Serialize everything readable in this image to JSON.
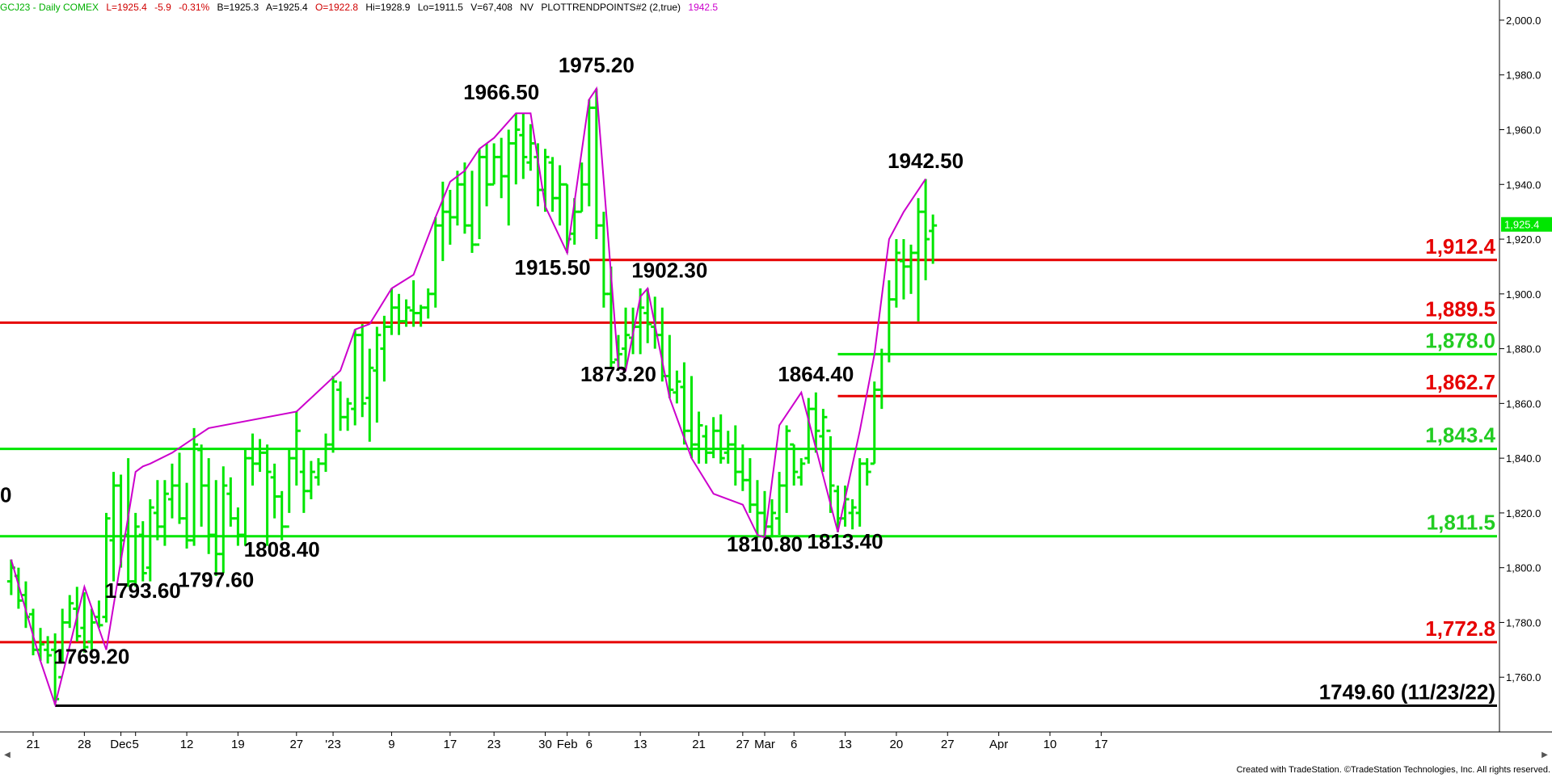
{
  "header": {
    "symbol": "GCJ23 - Daily  COMEX",
    "last": "L=1925.4",
    "change": "-5.9",
    "pct": "-0.31%",
    "bid": "B=1925.3",
    "ask": "A=1925.4",
    "open": "O=1922.8",
    "high": "Hi=1928.9",
    "low": "Lo=1911.5",
    "volume": "V=67,408",
    "nv": "NV",
    "indicator": "PLOTTRENDPOINTS#2 (2,true)",
    "indicator_value": "1942.5"
  },
  "colors": {
    "bar": "#00e600",
    "trend": "#cc00cc",
    "red_level": "#e60000",
    "green_level": "#00e600",
    "black_level": "#000000",
    "label_red": "#e60000",
    "label_green": "#22cc22",
    "header_green": "#00b000",
    "header_red": "#d00000"
  },
  "footer": {
    "text": "Created with TradeStation. ©TradeStation Technologies, Inc. All rights reserved."
  },
  "chart_data": {
    "type": "bar",
    "y_range": [
      1740,
      2005
    ],
    "y_ticks": [
      {
        "value": 2000,
        "label": "2,000.0"
      },
      {
        "value": 1980,
        "label": "1,980.0"
      },
      {
        "value": 1960,
        "label": "1,960.0"
      },
      {
        "value": 1940,
        "label": "1,940.0"
      },
      {
        "value": 1920,
        "label": "1,920.0"
      },
      {
        "value": 1900,
        "label": "1,900.0"
      },
      {
        "value": 1880,
        "label": "1,880.0"
      },
      {
        "value": 1860,
        "label": "1,860.0"
      },
      {
        "value": 1840,
        "label": "1,840.0"
      },
      {
        "value": 1820,
        "label": "1,820.0"
      },
      {
        "value": 1800,
        "label": "1,800.0"
      },
      {
        "value": 1780,
        "label": "1,780.0"
      },
      {
        "value": 1760,
        "label": "1,760.0"
      }
    ],
    "last_price_label": "1,925.4",
    "last_price": 1925.4,
    "x_ticks": [
      {
        "day": 0,
        "label": "21"
      },
      {
        "day": 7,
        "label": "28"
      },
      {
        "day": 12,
        "label": "Dec"
      },
      {
        "day": 14,
        "label": "5"
      },
      {
        "day": 21,
        "label": "12"
      },
      {
        "day": 28,
        "label": "19"
      },
      {
        "day": 36,
        "label": "27"
      },
      {
        "day": 41,
        "label": "'23"
      },
      {
        "day": 49,
        "label": "9"
      },
      {
        "day": 57,
        "label": "17"
      },
      {
        "day": 63,
        "label": "23"
      },
      {
        "day": 70,
        "label": "30"
      },
      {
        "day": 73,
        "label": "Feb"
      },
      {
        "day": 76,
        "label": "6"
      },
      {
        "day": 83,
        "label": "13"
      },
      {
        "day": 91,
        "label": "21"
      },
      {
        "day": 97,
        "label": "27"
      },
      {
        "day": 100,
        "label": "Mar"
      },
      {
        "day": 104,
        "label": "6"
      },
      {
        "day": 111,
        "label": "13"
      },
      {
        "day": 118,
        "label": "20"
      },
      {
        "day": 125,
        "label": "27"
      },
      {
        "day": 132,
        "label": "Apr"
      },
      {
        "day": 139,
        "label": "10"
      },
      {
        "day": 146,
        "label": "17"
      }
    ],
    "bars": [
      [
        -3,
        1803,
        1790,
        1795,
        1800
      ],
      [
        -2,
        1800,
        1785,
        1797,
        1788
      ],
      [
        -1,
        1795,
        1778,
        1790,
        1782
      ],
      [
        0,
        1785,
        1768,
        1783,
        1770
      ],
      [
        1,
        1778,
        1766,
        1770,
        1772
      ],
      [
        2,
        1775,
        1765,
        1770,
        1768
      ],
      [
        3,
        1776,
        1750,
        1770,
        1752
      ],
      [
        4,
        1785,
        1765,
        1760,
        1780
      ],
      [
        5,
        1790,
        1778,
        1780,
        1787
      ],
      [
        6,
        1793,
        1773,
        1785,
        1775
      ],
      [
        7,
        1791,
        1769,
        1778,
        1771
      ],
      [
        8,
        1785,
        1770,
        1773,
        1780
      ],
      [
        9,
        1788,
        1778,
        1782,
        1779
      ],
      [
        10,
        1820,
        1780,
        1782,
        1818
      ],
      [
        11,
        1835,
        1795,
        1810,
        1830
      ],
      [
        12,
        1834,
        1800,
        1830,
        1810
      ],
      [
        13,
        1840,
        1793,
        1812,
        1795
      ],
      [
        14,
        1820,
        1793,
        1795,
        1815
      ],
      [
        15,
        1817,
        1795,
        1812,
        1798
      ],
      [
        16,
        1825,
        1795,
        1800,
        1822
      ],
      [
        17,
        1832,
        1810,
        1820,
        1815
      ],
      [
        18,
        1832,
        1808,
        1815,
        1827
      ],
      [
        19,
        1838,
        1818,
        1825,
        1830
      ],
      [
        20,
        1842,
        1816,
        1830,
        1818
      ],
      [
        21,
        1831,
        1807,
        1818,
        1810
      ],
      [
        22,
        1851,
        1808,
        1810,
        1845
      ],
      [
        23,
        1845,
        1815,
        1843,
        1830
      ],
      [
        24,
        1840,
        1805,
        1830,
        1812
      ],
      [
        25,
        1832,
        1797,
        1812,
        1805
      ],
      [
        26,
        1837,
        1798,
        1805,
        1830
      ],
      [
        27,
        1833,
        1815,
        1827,
        1818
      ],
      [
        28,
        1822,
        1808,
        1818,
        1812
      ],
      [
        29,
        1843,
        1808,
        1812,
        1840
      ],
      [
        30,
        1849,
        1830,
        1840,
        1838
      ],
      [
        31,
        1847,
        1835,
        1838,
        1842
      ],
      [
        32,
        1845,
        1808,
        1842,
        1835
      ],
      [
        33,
        1838,
        1818,
        1833,
        1826
      ],
      [
        34,
        1828,
        1810,
        1826,
        1815
      ],
      [
        35,
        1843,
        1820,
        1815,
        1840
      ],
      [
        36,
        1857,
        1830,
        1840,
        1850
      ],
      [
        37,
        1843,
        1820,
        1835,
        1828
      ],
      [
        38,
        1839,
        1825,
        1828,
        1835
      ],
      [
        39,
        1840,
        1830,
        1833,
        1838
      ],
      [
        40,
        1849,
        1835,
        1838,
        1845
      ],
      [
        41,
        1870,
        1842,
        1845,
        1868
      ],
      [
        42,
        1868,
        1850,
        1865,
        1855
      ],
      [
        43,
        1862,
        1850,
        1855,
        1860
      ],
      [
        44,
        1887,
        1852,
        1858,
        1885
      ],
      [
        45,
        1889,
        1855,
        1885,
        1860
      ],
      [
        46,
        1880,
        1846,
        1862,
        1873
      ],
      [
        47,
        1888,
        1853,
        1872,
        1885
      ],
      [
        48,
        1892,
        1868,
        1880,
        1888
      ],
      [
        49,
        1902,
        1885,
        1888,
        1895
      ],
      [
        50,
        1900,
        1885,
        1895,
        1890
      ],
      [
        51,
        1898,
        1888,
        1890,
        1895
      ],
      [
        52,
        1905,
        1888,
        1894,
        1893
      ],
      [
        53,
        1896,
        1888,
        1893,
        1895
      ],
      [
        54,
        1902,
        1891,
        1895,
        1900
      ],
      [
        55,
        1928,
        1895,
        1900,
        1925
      ],
      [
        56,
        1941,
        1912,
        1925,
        1930
      ],
      [
        57,
        1938,
        1918,
        1930,
        1928
      ],
      [
        58,
        1945,
        1925,
        1928,
        1940
      ],
      [
        59,
        1948,
        1922,
        1940,
        1925
      ],
      [
        60,
        1945,
        1915,
        1925,
        1918
      ],
      [
        61,
        1953,
        1920,
        1918,
        1950
      ],
      [
        62,
        1955,
        1932,
        1950,
        1940
      ],
      [
        63,
        1955,
        1940,
        1940,
        1950
      ],
      [
        64,
        1957,
        1935,
        1950,
        1943
      ],
      [
        65,
        1960,
        1925,
        1943,
        1955
      ],
      [
        66,
        1966,
        1940,
        1955,
        1960
      ],
      [
        67,
        1966,
        1942,
        1958,
        1950
      ],
      [
        68,
        1962,
        1945,
        1948,
        1955
      ],
      [
        69,
        1955,
        1932,
        1950,
        1938
      ],
      [
        70,
        1953,
        1930,
        1938,
        1950
      ],
      [
        71,
        1950,
        1930,
        1948,
        1935
      ],
      [
        72,
        1947,
        1925,
        1935,
        1940
      ],
      [
        73,
        1940,
        1915,
        1940,
        1920
      ],
      [
        74,
        1935,
        1918,
        1922,
        1930
      ],
      [
        75,
        1948,
        1930,
        1930,
        1940
      ],
      [
        76,
        1971,
        1932,
        1940,
        1968
      ],
      [
        77,
        1975,
        1920,
        1968,
        1925
      ],
      [
        78,
        1930,
        1895,
        1925,
        1900
      ],
      [
        79,
        1910,
        1873,
        1900,
        1875
      ],
      [
        80,
        1885,
        1873,
        1876,
        1878
      ],
      [
        81,
        1895,
        1873,
        1880,
        1885
      ],
      [
        82,
        1895,
        1878,
        1884,
        1888
      ],
      [
        83,
        1902,
        1878,
        1888,
        1895
      ],
      [
        84,
        1902,
        1882,
        1893,
        1889
      ],
      [
        85,
        1899,
        1880,
        1888,
        1885
      ],
      [
        86,
        1895,
        1868,
        1885,
        1870
      ],
      [
        87,
        1885,
        1862,
        1870,
        1865
      ],
      [
        88,
        1872,
        1860,
        1864,
        1868
      ],
      [
        89,
        1875,
        1845,
        1866,
        1850
      ],
      [
        90,
        1870,
        1840,
        1850,
        1845
      ],
      [
        91,
        1857,
        1838,
        1845,
        1852
      ],
      [
        92,
        1852,
        1838,
        1848,
        1842
      ],
      [
        93,
        1855,
        1840,
        1842,
        1850
      ],
      [
        94,
        1856,
        1838,
        1850,
        1840
      ],
      [
        95,
        1850,
        1838,
        1842,
        1845
      ],
      [
        96,
        1852,
        1830,
        1845,
        1835
      ],
      [
        97,
        1845,
        1828,
        1835,
        1832
      ],
      [
        98,
        1840,
        1820,
        1832,
        1823
      ],
      [
        99,
        1832,
        1812,
        1823,
        1820
      ],
      [
        100,
        1828,
        1810,
        1820,
        1815
      ],
      [
        101,
        1825,
        1811,
        1815,
        1820
      ],
      [
        102,
        1835,
        1812,
        1818,
        1830
      ],
      [
        103,
        1852,
        1820,
        1830,
        1850
      ],
      [
        104,
        1845,
        1830,
        1845,
        1835
      ],
      [
        105,
        1840,
        1830,
        1833,
        1838
      ],
      [
        106,
        1862,
        1838,
        1840,
        1858
      ],
      [
        107,
        1864,
        1842,
        1858,
        1850
      ],
      [
        108,
        1858,
        1835,
        1848,
        1855
      ],
      [
        109,
        1848,
        1820,
        1850,
        1830
      ],
      [
        110,
        1830,
        1813,
        1828,
        1818
      ],
      [
        111,
        1830,
        1815,
        1818,
        1825
      ],
      [
        112,
        1825,
        1814,
        1820,
        1822
      ],
      [
        113,
        1840,
        1815,
        1820,
        1838
      ],
      [
        114,
        1840,
        1830,
        1838,
        1835
      ],
      [
        115,
        1868,
        1838,
        1838,
        1865
      ],
      [
        116,
        1880,
        1858,
        1865,
        1878
      ],
      [
        117,
        1905,
        1875,
        1878,
        1898
      ],
      [
        118,
        1920,
        1895,
        1898,
        1915
      ],
      [
        119,
        1920,
        1898,
        1912,
        1910
      ],
      [
        120,
        1918,
        1900,
        1910,
        1915
      ],
      [
        121,
        1935,
        1890,
        1915,
        1930
      ],
      [
        122,
        1942,
        1905,
        1930,
        1920
      ],
      [
        123,
        1929,
        1911,
        1923,
        1925
      ]
    ],
    "trendline": [
      [
        -3,
        1803
      ],
      [
        1,
        1766
      ],
      [
        3,
        1750
      ],
      [
        7,
        1793
      ],
      [
        10,
        1770
      ],
      [
        14,
        1835
      ],
      [
        15,
        1837
      ],
      [
        16,
        1838
      ],
      [
        19,
        1842
      ],
      [
        24,
        1851
      ],
      [
        36,
        1857
      ],
      [
        42,
        1872
      ],
      [
        44,
        1887
      ],
      [
        46,
        1889
      ],
      [
        49,
        1902
      ],
      [
        52,
        1907
      ],
      [
        55,
        1928
      ],
      [
        57,
        1941
      ],
      [
        59,
        1945
      ],
      [
        61,
        1953
      ],
      [
        63,
        1957
      ],
      [
        66,
        1966
      ],
      [
        68,
        1966
      ],
      [
        70,
        1932
      ],
      [
        73,
        1915
      ],
      [
        76,
        1971
      ],
      [
        77,
        1975
      ],
      [
        80,
        1873
      ],
      [
        81,
        1872
      ],
      [
        83,
        1899
      ],
      [
        84,
        1902
      ],
      [
        87,
        1862
      ],
      [
        90,
        1840
      ],
      [
        93,
        1827
      ],
      [
        97,
        1823
      ],
      [
        99,
        1812
      ],
      [
        100,
        1811
      ],
      [
        102,
        1852
      ],
      [
        105,
        1864
      ],
      [
        110,
        1813
      ],
      [
        113,
        1850
      ],
      [
        115,
        1878
      ],
      [
        117,
        1920
      ],
      [
        119,
        1930
      ],
      [
        122,
        1942
      ]
    ],
    "swing_labels": [
      {
        "text": "1769.20",
        "day": 8,
        "price": 1765,
        "anchor": "middle"
      },
      {
        "text": "1793.60",
        "day": 15,
        "price": 1789,
        "anchor": "middle"
      },
      {
        "text": "1797.60",
        "day": 25,
        "price": 1793,
        "anchor": "middle"
      },
      {
        "text": "1808.40",
        "day": 34,
        "price": 1804,
        "anchor": "middle"
      },
      {
        "text": "1966.50",
        "day": 64,
        "price": 1971,
        "anchor": "middle"
      },
      {
        "text": "1975.20",
        "day": 77,
        "price": 1981,
        "anchor": "middle"
      },
      {
        "text": "1915.50",
        "day": 71,
        "price": 1907,
        "anchor": "middle"
      },
      {
        "text": "1902.30",
        "day": 87,
        "price": 1906,
        "anchor": "middle"
      },
      {
        "text": "1873.20",
        "day": 80,
        "price": 1868,
        "anchor": "middle"
      },
      {
        "text": "1864.40",
        "day": 107,
        "price": 1868,
        "anchor": "middle"
      },
      {
        "text": "1810.80",
        "day": 100,
        "price": 1806,
        "anchor": "middle"
      },
      {
        "text": "1813.40",
        "day": 111,
        "price": 1807,
        "anchor": "middle"
      },
      {
        "text": "1942.50",
        "day": 122,
        "price": 1946,
        "anchor": "middle"
      },
      {
        "text": "0",
        "day": -3,
        "price": 1824,
        "anchor": "start"
      }
    ],
    "levels": [
      {
        "price": 1912.4,
        "label": "1,912.4",
        "color": "red",
        "from_day": 76
      },
      {
        "price": 1889.5,
        "label": "1,889.5",
        "color": "red",
        "from_day": -3
      },
      {
        "price": 1878.0,
        "label": "1,878.0",
        "color": "green",
        "from_day": 110
      },
      {
        "price": 1862.7,
        "label": "1,862.7",
        "color": "red",
        "from_day": 110
      },
      {
        "price": 1843.4,
        "label": "1,843.4",
        "color": "green",
        "from_day": -3
      },
      {
        "price": 1811.5,
        "label": "1,811.5",
        "color": "green",
        "from_day": -3
      },
      {
        "price": 1772.8,
        "label": "1,772.8",
        "color": "red",
        "from_day": -3
      },
      {
        "price": 1749.6,
        "label": "1749.60 (11/23/22)",
        "color": "black",
        "from_day": 3
      }
    ]
  }
}
